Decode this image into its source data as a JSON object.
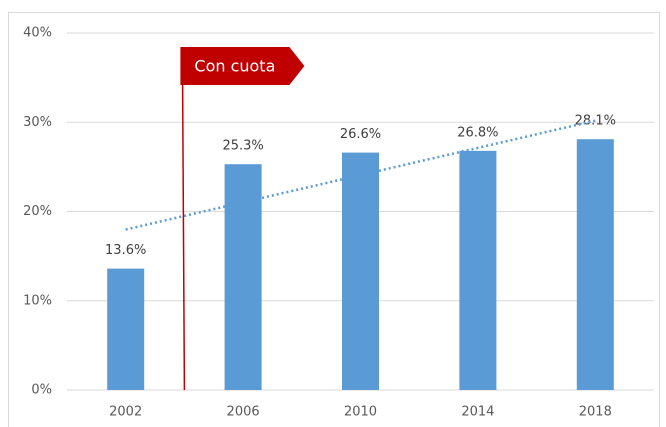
{
  "chart_data": {
    "type": "bar",
    "categories": [
      "2002",
      "2006",
      "2010",
      "2014",
      "2018"
    ],
    "values": [
      13.6,
      25.3,
      26.6,
      26.8,
      28.1
    ],
    "value_labels": [
      "13.6%",
      "25.3%",
      "26.6%",
      "26.8%",
      "28.1%"
    ],
    "color": "#5b9bd5",
    "ylim": [
      0,
      40
    ],
    "yticks": [
      {
        "value": 0,
        "label": "0%"
      },
      {
        "value": 10,
        "label": "10%"
      },
      {
        "value": 20,
        "label": "20%"
      },
      {
        "value": 30,
        "label": "30%"
      },
      {
        "value": 40,
        "label": "40%"
      }
    ],
    "grid": true,
    "trendline": {
      "color": "#5b9bd5",
      "style": "dotted"
    },
    "annotation": {
      "text": "Con cuota",
      "color": "#c00000"
    }
  }
}
